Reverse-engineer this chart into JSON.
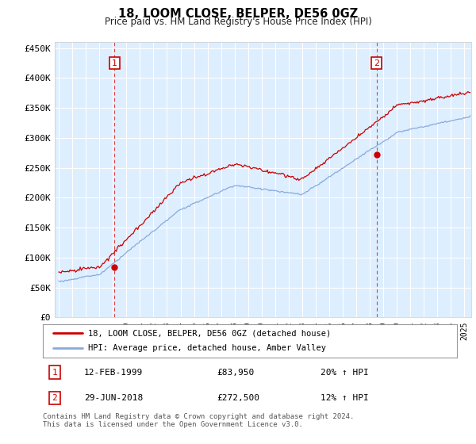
{
  "title": "18, LOOM CLOSE, BELPER, DE56 0GZ",
  "subtitle": "Price paid vs. HM Land Registry's House Price Index (HPI)",
  "ylabel_ticks": [
    "£0",
    "£50K",
    "£100K",
    "£150K",
    "£200K",
    "£250K",
    "£300K",
    "£350K",
    "£400K",
    "£450K"
  ],
  "ytick_vals": [
    0,
    50000,
    100000,
    150000,
    200000,
    250000,
    300000,
    350000,
    400000,
    450000
  ],
  "ylim": [
    0,
    460000
  ],
  "xlim_start": 1994.7,
  "xlim_end": 2025.5,
  "bg_color": "#ddeeff",
  "fig_bg_color": "#ffffff",
  "grid_color": "#ffffff",
  "sale1_x": 1999.12,
  "sale1_y": 83950,
  "sale2_x": 2018.5,
  "sale2_y": 272500,
  "legend_red_label": "18, LOOM CLOSE, BELPER, DE56 0GZ (detached house)",
  "legend_blue_label": "HPI: Average price, detached house, Amber Valley",
  "note1_num": "1",
  "note1_date": "12-FEB-1999",
  "note1_price": "£83,950",
  "note1_hpi": "20% ↑ HPI",
  "note2_num": "2",
  "note2_date": "29-JUN-2018",
  "note2_price": "£272,500",
  "note2_hpi": "12% ↑ HPI",
  "footer": "Contains HM Land Registry data © Crown copyright and database right 2024.\nThis data is licensed under the Open Government Licence v3.0.",
  "red_color": "#cc0000",
  "blue_color": "#88aadd",
  "dashed_red": "#dd4444"
}
